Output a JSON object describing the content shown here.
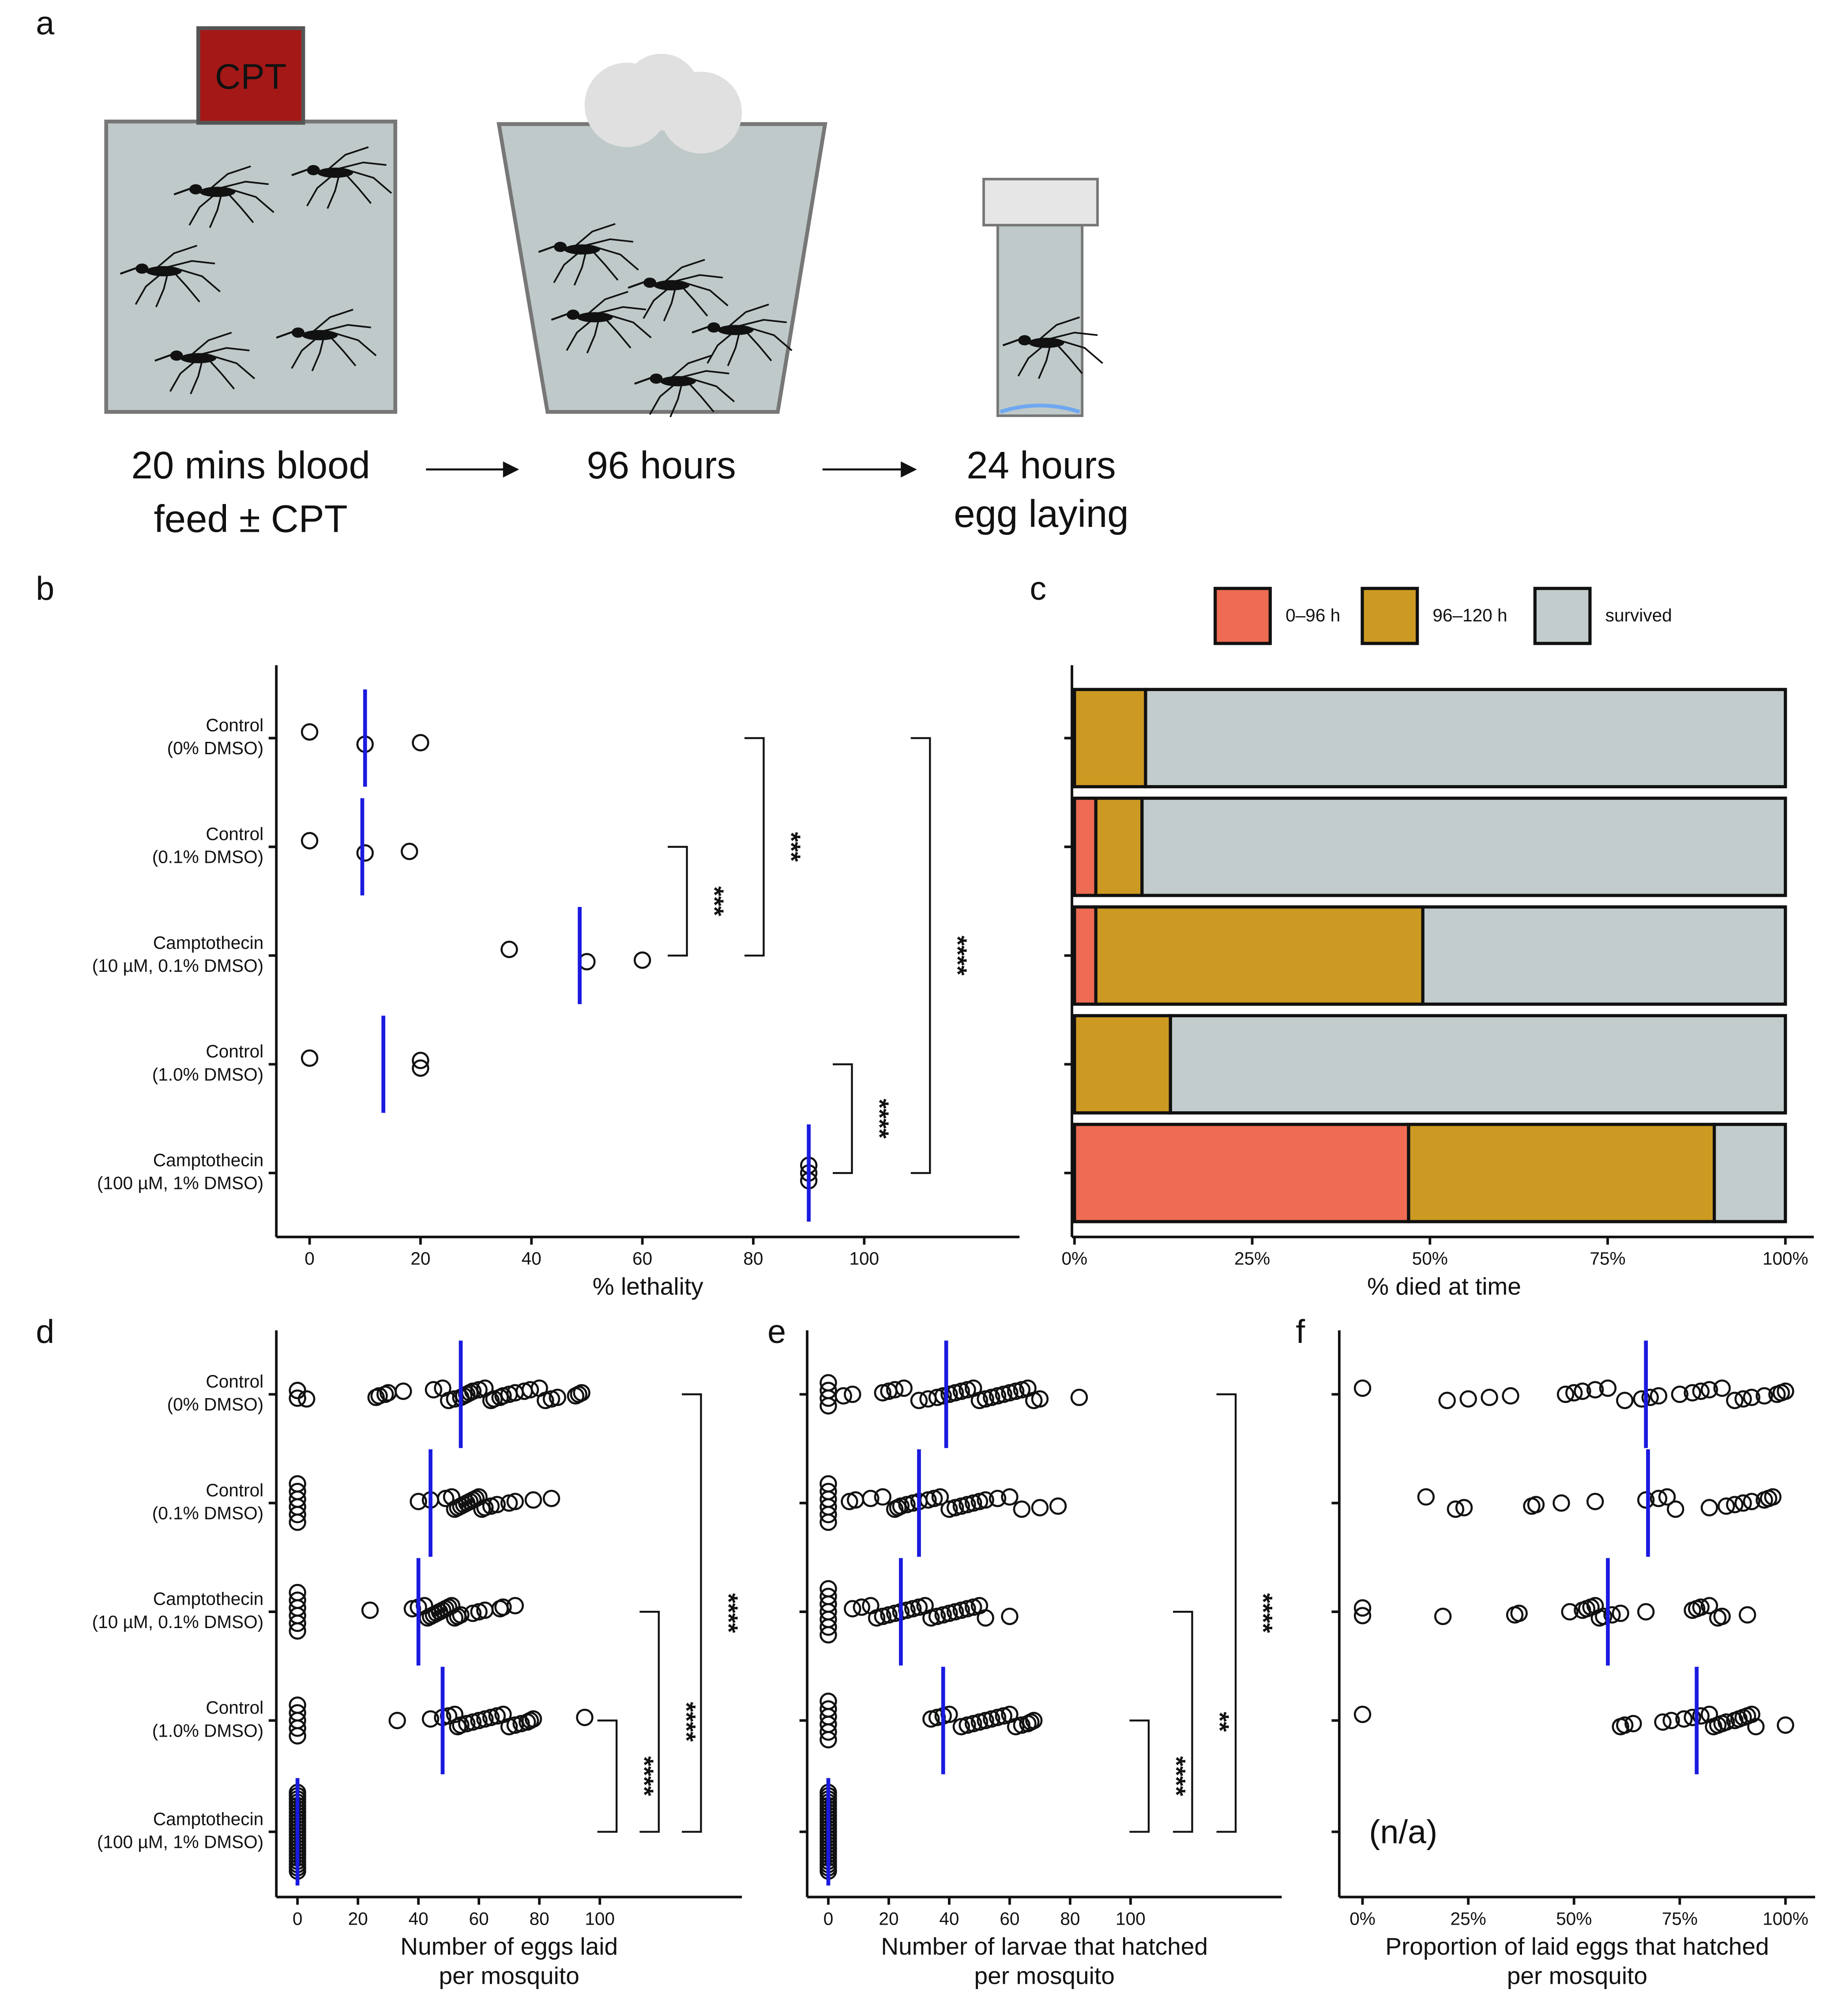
{
  "diagram": {
    "panel": "a",
    "label": "CPT",
    "steps": [
      [
        "20 mins blood",
        "feed ± CPT"
      ],
      [
        "96 hours"
      ],
      [
        "24 hours",
        "egg laying"
      ]
    ]
  },
  "chart_data": [
    {
      "panel": "b",
      "type": "strip",
      "point_color": "#111111",
      "mean_color": "#1a1ae0",
      "categories": [
        [
          "Control",
          "(0% DMSO)"
        ],
        [
          "Control",
          "(0.1% DMSO)"
        ],
        [
          "Camptothecin",
          "(10 µM, 0.1% DMSO)"
        ],
        [
          "Control",
          "(1.0% DMSO)"
        ],
        [
          "Camptothecin",
          "(100 µM, 1% DMSO)"
        ]
      ],
      "groups": [
        {
          "values": [
            0,
            10,
            20
          ],
          "mean": 10
        },
        {
          "values": [
            0,
            10,
            18
          ],
          "mean": 9.5
        },
        {
          "values": [
            36,
            50,
            60
          ],
          "mean": 48.7
        },
        {
          "values": [
            0,
            20,
            20
          ],
          "mean": 13.3
        },
        {
          "values": [
            90,
            90,
            90
          ],
          "mean": 90
        }
      ],
      "xlabel": [
        "% lethality"
      ],
      "xlim": [
        -6,
        128
      ],
      "xticks": [
        0,
        20,
        40,
        60,
        80,
        100
      ],
      "comparisons": [
        {
          "rows": [
            1,
            2
          ],
          "label": "***"
        },
        {
          "rows": [
            0,
            2
          ],
          "label": "***"
        },
        {
          "rows": [
            3,
            4
          ],
          "label": "****"
        },
        {
          "rows": [
            0,
            4
          ],
          "label": "****"
        }
      ]
    },
    {
      "panel": "c",
      "type": "stacked-bar-h",
      "legend": "top",
      "series": [
        {
          "name": "0–96 h",
          "color": "#ee6c53",
          "values": [
            0,
            3,
            3,
            0,
            47
          ]
        },
        {
          "name": "96–120 h",
          "color": "#cc9a22",
          "values": [
            10,
            6.5,
            46,
            13.5,
            43
          ]
        },
        {
          "name": "survived",
          "color": "#c3cccc",
          "values": [
            90,
            90.5,
            51,
            86.5,
            10
          ]
        }
      ],
      "xlabel": [
        "% died at time"
      ],
      "xlim": [
        0,
        104
      ],
      "xticks": [
        {
          "value": 0,
          "label": "0%"
        },
        {
          "value": 25,
          "label": "25%"
        },
        {
          "value": 50,
          "label": "50%"
        },
        {
          "value": 75,
          "label": "75%"
        },
        {
          "value": 100,
          "label": "100%"
        }
      ]
    },
    {
      "panel": "d",
      "type": "strip",
      "point_color": "#111111",
      "mean_color": "#1a1ae0",
      "categories": [
        [
          "Control",
          "(0% DMSO)"
        ],
        [
          "Control",
          "(0.1% DMSO)"
        ],
        [
          "Camptothecin",
          "(10 µM, 0.1% DMSO)"
        ],
        [
          "Control",
          "(1.0% DMSO)"
        ],
        [
          "Camptothecin",
          "(100 µM, 1% DMSO)"
        ]
      ],
      "groups": [
        {
          "values": [
            0,
            0,
            3,
            26,
            27,
            29,
            30,
            35,
            45,
            48,
            50,
            52,
            54,
            55,
            56,
            57,
            58,
            60,
            62,
            64,
            65,
            67,
            68,
            70,
            72,
            75,
            77,
            80,
            82,
            84,
            86,
            92,
            93,
            94
          ],
          "mean": 54
        },
        {
          "values": [
            0,
            0,
            0,
            0,
            0,
            0,
            40,
            44,
            49,
            51,
            52,
            53,
            54,
            55,
            56,
            57,
            58,
            59,
            60,
            61,
            62,
            64,
            66,
            70,
            72,
            78,
            84
          ],
          "mean": 44
        },
        {
          "values": [
            0,
            0,
            0,
            0,
            0,
            0,
            24,
            38,
            40,
            42,
            43,
            44,
            45,
            46,
            47,
            48,
            49,
            50,
            51,
            52,
            53,
            54,
            58,
            60,
            62,
            67,
            68,
            72
          ],
          "mean": 40
        },
        {
          "values": [
            0,
            0,
            0,
            0,
            0,
            33,
            44,
            48,
            50,
            52,
            53,
            54,
            56,
            58,
            60,
            62,
            64,
            66,
            68,
            70,
            72,
            74,
            76,
            77,
            78,
            95
          ],
          "mean": 48
        },
        {
          "values": [
            0,
            0,
            0,
            0,
            0,
            0,
            0,
            0,
            0,
            0,
            0,
            0,
            0,
            0,
            0,
            0,
            0,
            0,
            0,
            0,
            0,
            0,
            0,
            0,
            0
          ],
          "mean": 0
        }
      ],
      "xlabel": [
        "Number of eggs laid",
        "per mosquito"
      ],
      "xlim": [
        -7,
        147
      ],
      "xticks": [
        0,
        20,
        40,
        60,
        80,
        100
      ],
      "comparisons": [
        {
          "rows": [
            3,
            4
          ],
          "label": "****"
        },
        {
          "rows": [
            2,
            4
          ],
          "label": "****"
        },
        {
          "rows": [
            0,
            4
          ],
          "label": "****"
        }
      ]
    },
    {
      "panel": "e",
      "type": "strip",
      "point_color": "#111111",
      "mean_color": "#1a1ae0",
      "groups": [
        {
          "values": [
            0,
            0,
            0,
            0,
            5,
            8,
            18,
            20,
            22,
            25,
            30,
            33,
            36,
            38,
            40,
            42,
            44,
            46,
            48,
            50,
            52,
            54,
            56,
            58,
            60,
            62,
            64,
            66,
            68,
            70,
            83
          ],
          "mean": 39
        },
        {
          "values": [
            0,
            0,
            0,
            0,
            0,
            0,
            7,
            9,
            14,
            18,
            22,
            23,
            24,
            26,
            28,
            30,
            33,
            35,
            37,
            40,
            42,
            44,
            46,
            48,
            50,
            52,
            56,
            60,
            64,
            70,
            76
          ],
          "mean": 30
        },
        {
          "values": [
            0,
            0,
            0,
            0,
            0,
            0,
            0,
            8,
            11,
            14,
            16,
            18,
            20,
            22,
            24,
            26,
            28,
            30,
            32,
            34,
            36,
            38,
            40,
            42,
            44,
            46,
            48,
            50,
            52,
            60
          ],
          "mean": 24
        },
        {
          "values": [
            0,
            0,
            0,
            0,
            0,
            0,
            34,
            36,
            38,
            40,
            44,
            46,
            48,
            50,
            52,
            54,
            56,
            58,
            60,
            62,
            64,
            66,
            67,
            68
          ],
          "mean": 38
        },
        {
          "values": [
            0,
            0,
            0,
            0,
            0,
            0,
            0,
            0,
            0,
            0,
            0,
            0,
            0,
            0,
            0,
            0,
            0,
            0,
            0,
            0,
            0,
            0,
            0,
            0,
            0
          ],
          "mean": 0
        }
      ],
      "xlabel": [
        "Number of larvae that hatched",
        "per mosquito"
      ],
      "xlim": [
        -7,
        150
      ],
      "xticks": [
        0,
        20,
        40,
        60,
        80,
        100
      ],
      "comparisons": [
        {
          "rows": [
            3,
            4
          ],
          "label": "****"
        },
        {
          "rows": [
            2,
            4
          ],
          "label": "**"
        },
        {
          "rows": [
            0,
            4
          ],
          "label": "****"
        }
      ]
    },
    {
      "panel": "f",
      "type": "strip",
      "point_color": "#111111",
      "mean_color": "#1a1ae0",
      "groups": [
        {
          "values": [
            0,
            20,
            25,
            30,
            35,
            48,
            50,
            52,
            55,
            58,
            62,
            66,
            68,
            70,
            75,
            78,
            80,
            82,
            85,
            88,
            90,
            92,
            95,
            98,
            99,
            100
          ],
          "mean": 67
        },
        {
          "values": [
            15,
            22,
            24,
            40,
            41,
            47,
            55,
            67,
            70,
            72,
            74,
            82,
            86,
            88,
            90,
            92,
            95,
            96,
            97
          ],
          "mean": 67.5
        },
        {
          "values": [
            0,
            0,
            19,
            36,
            37,
            49,
            52,
            53,
            54,
            55,
            56,
            57,
            59,
            61,
            67,
            78,
            79,
            80,
            82,
            84,
            85,
            91
          ],
          "mean": 58
        },
        {
          "values": [
            0,
            61,
            62,
            64,
            71,
            73,
            76,
            78,
            80,
            82,
            83,
            84,
            85,
            86,
            88,
            89,
            90,
            91,
            92,
            93,
            100
          ],
          "mean": 79
        },
        {
          "values": []
        }
      ],
      "annotation": "(n/a)",
      "xlabel": [
        "Proportion of laid eggs that hatched",
        "per mosquito"
      ],
      "xlim": [
        -5.5,
        107
      ],
      "xticks": [
        {
          "value": 0,
          "label": "0%"
        },
        {
          "value": 25,
          "label": "25%"
        },
        {
          "value": 50,
          "label": "50%"
        },
        {
          "value": 75,
          "label": "75%"
        },
        {
          "value": 100,
          "label": "100%"
        }
      ]
    }
  ]
}
